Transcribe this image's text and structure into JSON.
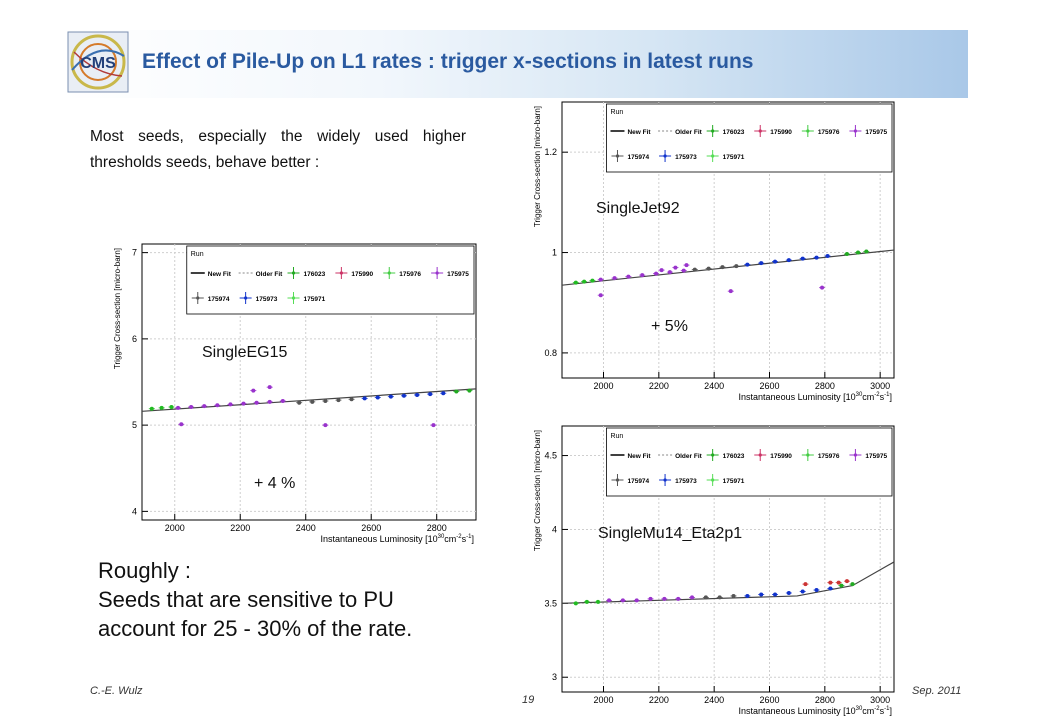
{
  "header": {
    "title": "Effect of Pile-Up on L1 rates : trigger x-sections in latest runs"
  },
  "logo": {
    "text": "CMS"
  },
  "intro": {
    "text": "Most seeds, especially the widely used higher thresholds seeds, behave better :"
  },
  "conclusion": {
    "line1": "Roughly :",
    "line2": "Seeds that are sensitive to PU",
    "line3": "account for  25 - 30% of the rate."
  },
  "footer": {
    "author": "C.-E. Wulz",
    "page": "19",
    "date": "Sep. 2011"
  },
  "colors": {
    "title": "#2a5aa0",
    "header_gradient_end": "#a9c8e8"
  },
  "chart_data": [
    {
      "id": "eg15",
      "type": "scatter",
      "name": "SingleEG15",
      "annotation": "+ 4 %",
      "xlabel": "Instantaneous Luminosity [10",
      "xlabel_sup": "30",
      "xlabel_unit": "cm",
      "xlabel_sup2": "-2",
      "xlabel_end": "s",
      "xlabel_sup3": "-1",
      "xlabel_close": "]",
      "ylabel": "Trigger Cross-section [micro-barn]",
      "xlim": [
        1900,
        2920
      ],
      "ylim": [
        3.9,
        7.1
      ],
      "xticks": [
        2000,
        2200,
        2400,
        2600,
        2800
      ],
      "yticks": [
        4,
        5,
        6,
        7
      ],
      "fit": {
        "x": [
          1900,
          2920
        ],
        "y": [
          5.16,
          5.42
        ]
      },
      "legend": {
        "title": "Run",
        "row1": [
          "New Fit",
          "Older Fit",
          "176023",
          "175990",
          "175976",
          "175975"
        ],
        "row2": [
          "175974",
          "175973",
          "175971"
        ]
      },
      "series": [
        {
          "name": "175971",
          "color": "#22bb22",
          "x": [
            1930,
            1960,
            1990
          ],
          "y": [
            5.19,
            5.2,
            5.21
          ]
        },
        {
          "name": "175975",
          "color": "#9933cc",
          "x": [
            2010,
            2050,
            2090,
            2130,
            2170,
            2210,
            2250,
            2290,
            2330
          ],
          "y": [
            5.2,
            5.21,
            5.22,
            5.23,
            5.24,
            5.25,
            5.26,
            5.27,
            5.28
          ]
        },
        {
          "name": "175974",
          "color": "#555555",
          "x": [
            2380,
            2420,
            2460,
            2500,
            2540
          ],
          "y": [
            5.26,
            5.27,
            5.28,
            5.29,
            5.3
          ]
        },
        {
          "name": "175973",
          "color": "#1133cc",
          "x": [
            2580,
            2620,
            2660,
            2700,
            2740,
            2780,
            2820
          ],
          "y": [
            5.31,
            5.32,
            5.33,
            5.34,
            5.35,
            5.36,
            5.37
          ]
        },
        {
          "name": "176023",
          "color": "#22aa22",
          "x": [
            2860,
            2900
          ],
          "y": [
            5.39,
            5.4
          ]
        },
        {
          "name": "outliers",
          "color": "#9933cc",
          "x": [
            2020,
            2240,
            2290,
            2460,
            2790
          ],
          "y": [
            5.01,
            5.4,
            5.44,
            5.0,
            5.0
          ]
        }
      ]
    },
    {
      "id": "jet92",
      "type": "scatter",
      "name": "SingleJet92",
      "annotation": "+ 5%",
      "xlabel": "Instantaneous Luminosity [10",
      "xlabel_sup": "30",
      "xlabel_unit": "cm",
      "xlabel_sup2": "-2",
      "xlabel_end": "s",
      "xlabel_sup3": "-1",
      "xlabel_close": "]",
      "ylabel": "Trigger Cross-section [micro-barn]",
      "xlim": [
        1850,
        3050
      ],
      "ylim": [
        0.75,
        1.3
      ],
      "xticks": [
        2000,
        2200,
        2400,
        2600,
        2800,
        3000
      ],
      "yticks": [
        0.8,
        1,
        1.2
      ],
      "fit": {
        "x": [
          1850,
          3050
        ],
        "y": [
          0.935,
          1.005
        ]
      },
      "legend": {
        "title": "Run",
        "row1": [
          "New Fit",
          "Older Fit",
          "176023",
          "175990",
          "175976",
          "175975"
        ],
        "row2": [
          "175974",
          "175973",
          "175971"
        ]
      },
      "series": [
        {
          "name": "175971",
          "color": "#22bb22",
          "x": [
            1900,
            1930,
            1960
          ],
          "y": [
            0.94,
            0.942,
            0.944
          ]
        },
        {
          "name": "175975",
          "color": "#9933cc",
          "x": [
            1990,
            2040,
            2090,
            2140,
            2190,
            2240,
            2290
          ],
          "y": [
            0.946,
            0.949,
            0.952,
            0.955,
            0.958,
            0.961,
            0.964
          ]
        },
        {
          "name": "175974",
          "color": "#555555",
          "x": [
            2330,
            2380,
            2430,
            2480
          ],
          "y": [
            0.966,
            0.968,
            0.971,
            0.973
          ]
        },
        {
          "name": "175973",
          "color": "#1133cc",
          "x": [
            2520,
            2570,
            2620,
            2670,
            2720,
            2770,
            2810
          ],
          "y": [
            0.976,
            0.979,
            0.982,
            0.985,
            0.988,
            0.99,
            0.993
          ]
        },
        {
          "name": "176023",
          "color": "#22aa22",
          "x": [
            2880,
            2920,
            2950
          ],
          "y": [
            0.997,
            1.0,
            1.002
          ]
        },
        {
          "name": "outliers",
          "color": "#9933cc",
          "x": [
            1990,
            2210,
            2260,
            2300,
            2460,
            2790
          ],
          "y": [
            0.915,
            0.965,
            0.97,
            0.975,
            0.923,
            0.93
          ]
        }
      ]
    },
    {
      "id": "mu14",
      "type": "scatter",
      "name": "SingleMu14_Eta2p1",
      "annotation": "",
      "xlabel": "Instantaneous Luminosity [10",
      "xlabel_sup": "30",
      "xlabel_unit": "cm",
      "xlabel_sup2": "-2",
      "xlabel_end": "s",
      "xlabel_sup3": "-1",
      "xlabel_close": "]",
      "ylabel": "Trigger Cross-section [micro-barn]",
      "xlim": [
        1850,
        3050
      ],
      "ylim": [
        2.9,
        4.7
      ],
      "xticks": [
        2000,
        2200,
        2400,
        2600,
        2800,
        3000
      ],
      "yticks": [
        3,
        3.5,
        4,
        4.5
      ],
      "fit": {
        "x": [
          1850,
          2700,
          2900,
          3050
        ],
        "y": [
          3.5,
          3.55,
          3.62,
          3.78
        ]
      },
      "legend": {
        "title": "Run",
        "row1": [
          "New Fit",
          "Older Fit",
          "176023",
          "175990",
          "175976",
          "175975"
        ],
        "row2": [
          "175974",
          "175973",
          "175971"
        ]
      },
      "series": [
        {
          "name": "175971",
          "color": "#22bb22",
          "x": [
            1900,
            1940,
            1980
          ],
          "y": [
            3.5,
            3.51,
            3.51
          ]
        },
        {
          "name": "175975",
          "color": "#9933cc",
          "x": [
            2020,
            2070,
            2120,
            2170,
            2220,
            2270,
            2320
          ],
          "y": [
            3.52,
            3.52,
            3.52,
            3.53,
            3.53,
            3.53,
            3.54
          ]
        },
        {
          "name": "175974",
          "color": "#555555",
          "x": [
            2370,
            2420,
            2470
          ],
          "y": [
            3.54,
            3.54,
            3.55
          ]
        },
        {
          "name": "175973",
          "color": "#1133cc",
          "x": [
            2520,
            2570,
            2620,
            2670,
            2720,
            2770,
            2820
          ],
          "y": [
            3.55,
            3.56,
            3.56,
            3.57,
            3.58,
            3.59,
            3.6
          ]
        },
        {
          "name": "176023",
          "color": "#22aa22",
          "x": [
            2860,
            2900
          ],
          "y": [
            3.62,
            3.63
          ]
        },
        {
          "name": "outliers",
          "color": "#cc3333",
          "x": [
            2730,
            2820,
            2850,
            2880
          ],
          "y": [
            3.63,
            3.64,
            3.64,
            3.65
          ]
        }
      ]
    }
  ]
}
